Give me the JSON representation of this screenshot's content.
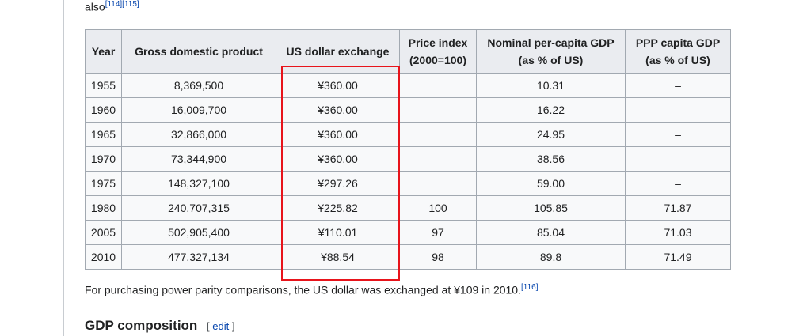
{
  "intro": {
    "text": "also",
    "refs": "[114][115]"
  },
  "table": {
    "headers": [
      "Year",
      "Gross domestic product",
      "US dollar exchange",
      "Price index (2000=100)",
      "Nominal per-capita GDP (as % of US)",
      "PPP capita GDP (as % of US)"
    ],
    "rows": [
      [
        "1955",
        "8,369,500",
        "¥360.00",
        "",
        "10.31",
        "–"
      ],
      [
        "1960",
        "16,009,700",
        "¥360.00",
        "",
        "16.22",
        "–"
      ],
      [
        "1965",
        "32,866,000",
        "¥360.00",
        "",
        "24.95",
        "–"
      ],
      [
        "1970",
        "73,344,900",
        "¥360.00",
        "",
        "38.56",
        "–"
      ],
      [
        "1975",
        "148,327,100",
        "¥297.26",
        "",
        "59.00",
        "–"
      ],
      [
        "1980",
        "240,707,315",
        "¥225.82",
        "100",
        "105.85",
        "71.87"
      ],
      [
        "2005",
        "502,905,400",
        "¥110.01",
        "97",
        "85.04",
        "71.03"
      ],
      [
        "2010",
        "477,327,134",
        "¥88.54",
        "98",
        "89.8",
        "71.49"
      ]
    ]
  },
  "footnote": {
    "text": "For purchasing power parity comparisons, the US dollar was exchanged at ¥109 in 2010.",
    "ref": "[116]"
  },
  "section": {
    "title": "GDP composition",
    "edit_open": "[",
    "edit": "edit",
    "edit_close": "]"
  }
}
